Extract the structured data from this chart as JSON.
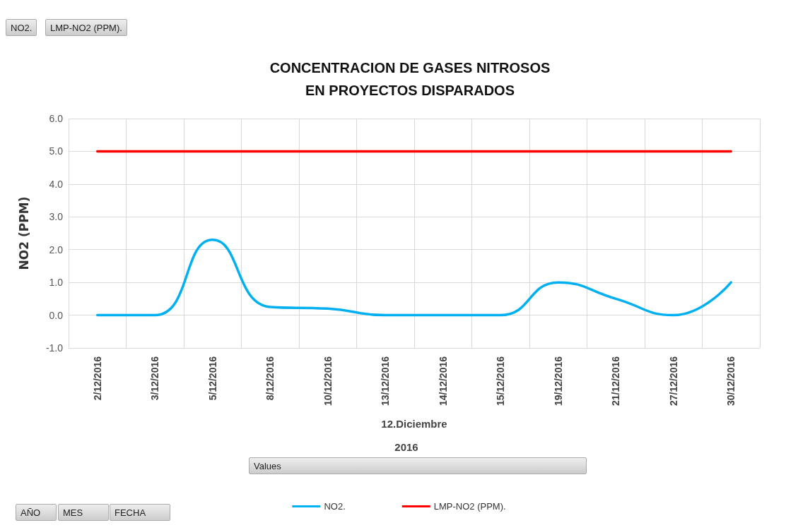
{
  "chart_data": {
    "type": "line",
    "title": "CONCENTRACION DE GASES NITROSOS\nEN PROYECTOS DISPARADOS",
    "xlabel": "12.Diciembre",
    "ylabel": "NO2 (PPM)",
    "categories": [
      "2/12/2016",
      "3/12/2016",
      "5/12/2016",
      "8/12/2016",
      "10/12/2016",
      "13/12/2016",
      "14/12/2016",
      "15/12/2016",
      "19/12/2016",
      "21/12/2016",
      "27/12/2016",
      "30/12/2016"
    ],
    "series": [
      {
        "name": "NO2.",
        "color": "#00b0f0",
        "values": [
          0,
          0,
          2.3,
          0.25,
          0.2,
          0,
          0,
          0,
          1.0,
          0.5,
          0,
          1.0
        ]
      },
      {
        "name": "LMP-NO2 (PPM).",
        "color": "#ff0000",
        "values": [
          5,
          5,
          5,
          5,
          5,
          5,
          5,
          5,
          5,
          5,
          5,
          5
        ]
      }
    ],
    "ylim": [
      -1,
      6
    ],
    "yticks": [
      {
        "value": -1,
        "label": "-1.0"
      },
      {
        "value": 0,
        "label": "0.0"
      },
      {
        "value": 1,
        "label": "1.0"
      },
      {
        "value": 2,
        "label": "2.0"
      },
      {
        "value": 3,
        "label": "3.0"
      },
      {
        "value": 4,
        "label": "4.0"
      },
      {
        "value": 5,
        "label": "5.0"
      },
      {
        "value": 6,
        "label": "6.0"
      }
    ],
    "grid": true,
    "legend": "bottom",
    "marker": "none",
    "line_style": "solid",
    "annotations": [
      "2016",
      "NO2.",
      "LMP-NO2 (PPM).",
      "Values",
      "AÑO",
      "MES",
      "FECHA"
    ]
  }
}
